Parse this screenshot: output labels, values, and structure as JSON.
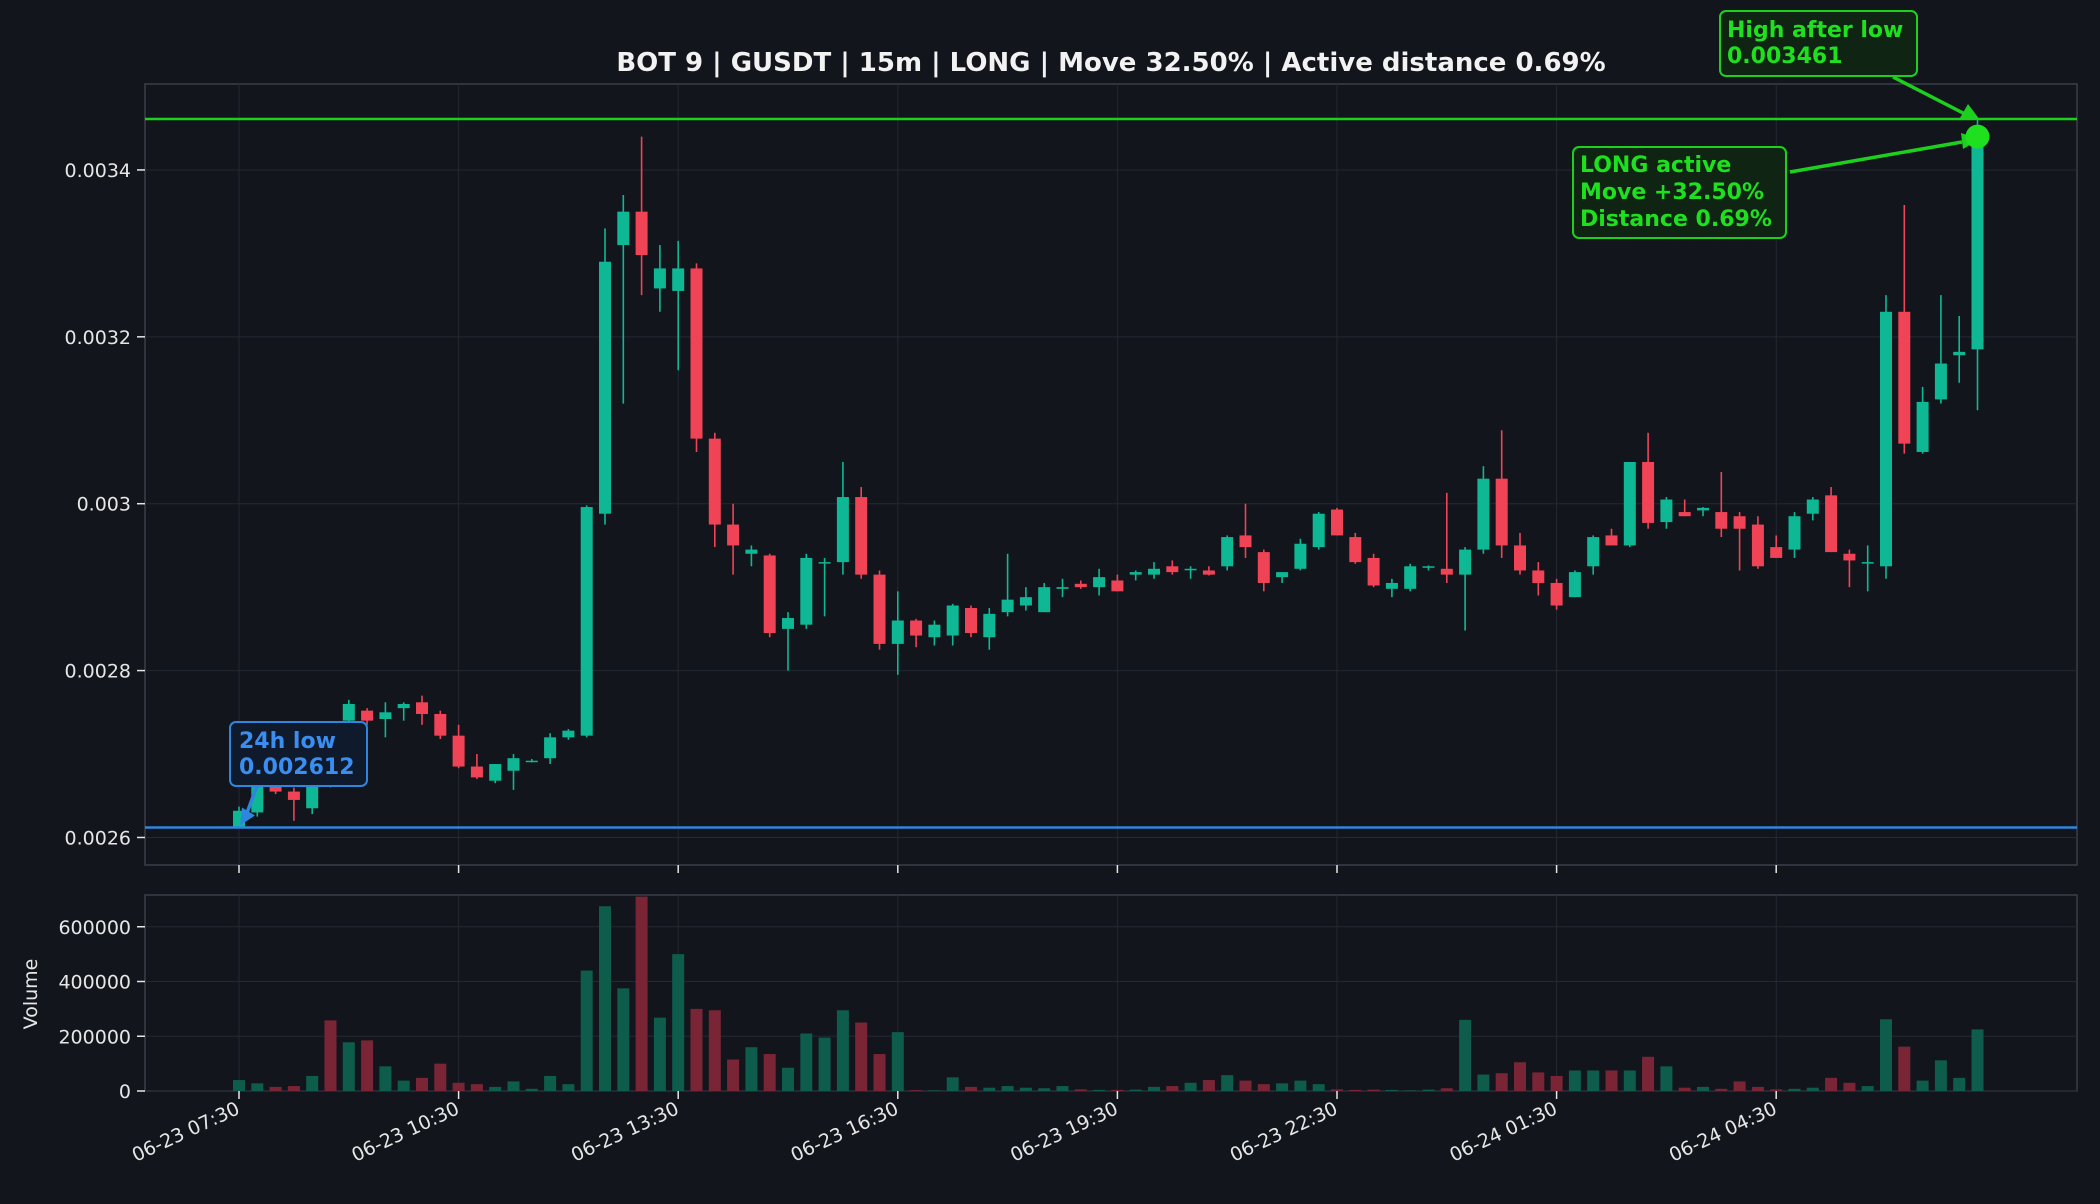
{
  "title": "BOT 9 | GUSDT | 15m | LONG | Move 32.50% | Active distance 0.69%",
  "colors": {
    "background": "#12151c",
    "up": "#0fb894",
    "down": "#f04356",
    "vol_up": "#0e5c4c",
    "vol_down": "#7a2535",
    "low_line": "#2e86de",
    "high_line": "#1ed01e",
    "annotation_green": "#1ee01e",
    "annotation_blue": "#3a8ef0",
    "axis_text": "#e6e6e6",
    "grid": "#232833",
    "frame": "#3a3f4a"
  },
  "annotations": {
    "low": {
      "line1": "24h low",
      "line2": "0.002612"
    },
    "high": {
      "line1": "High after low",
      "line2": "0.003461"
    },
    "active": {
      "line1": "LONG active",
      "line2": "Move +32.50%",
      "line3": "Distance 0.69%"
    }
  },
  "chart_data": [
    {
      "type": "candlestick",
      "title": "BOT 9 | GUSDT | 15m | LONG | Move 32.50% | Active distance 0.69%",
      "interval": "15m",
      "x_start": "06-23 07:30",
      "xtick_labels": [
        "06-23 07:30",
        "06-23 10:30",
        "06-23 13:30",
        "06-23 16:30",
        "06-23 19:30",
        "06-23 22:30",
        "06-24 01:30",
        "06-24 04:30"
      ],
      "xtick_index": [
        0,
        12,
        24,
        36,
        48,
        60,
        72,
        84
      ],
      "yticks": [
        0.0026,
        0.0028,
        0.003,
        0.0032,
        0.0034
      ],
      "ytick_labels": [
        "0.0026",
        "0.0028",
        "0.003",
        "0.0032",
        "0.0034"
      ],
      "ylim": [
        0.002567,
        0.003503
      ],
      "grid": true,
      "hlines": [
        {
          "label": "24h low",
          "value": 0.002612
        },
        {
          "label": "High after low",
          "value": 0.003461
        }
      ],
      "ohlc": [
        [
          0.002612,
          0.002637,
          0.002612,
          0.002632
        ],
        [
          0.00263,
          0.002672,
          0.002625,
          0.002665
        ],
        [
          0.002665,
          0.00268,
          0.002652,
          0.002655
        ],
        [
          0.002655,
          0.00266,
          0.00262,
          0.002645
        ],
        [
          0.002635,
          0.00269,
          0.002628,
          0.00268
        ],
        [
          0.00268,
          0.00269,
          0.00266,
          0.002662
        ],
        [
          0.00274,
          0.002765,
          0.002735,
          0.00276
        ],
        [
          0.002752,
          0.002755,
          0.002735,
          0.00274
        ],
        [
          0.002742,
          0.002762,
          0.00272,
          0.00275
        ],
        [
          0.002755,
          0.002762,
          0.00274,
          0.00276
        ],
        [
          0.002762,
          0.00277,
          0.002735,
          0.002748
        ],
        [
          0.002748,
          0.002752,
          0.002718,
          0.002722
        ],
        [
          0.002722,
          0.002735,
          0.002683,
          0.002685
        ],
        [
          0.002685,
          0.0027,
          0.00267,
          0.002672
        ],
        [
          0.002668,
          0.002688,
          0.002665,
          0.002688
        ],
        [
          0.00268,
          0.0027,
          0.002657,
          0.002695
        ],
        [
          0.002692,
          0.002694,
          0.00269,
          0.002692
        ],
        [
          0.002695,
          0.002725,
          0.002688,
          0.00272
        ],
        [
          0.00272,
          0.00273,
          0.002717,
          0.002728
        ],
        [
          0.002722,
          0.002998,
          0.00272,
          0.002996
        ],
        [
          0.002988,
          0.00333,
          0.002975,
          0.00329
        ],
        [
          0.00331,
          0.00337,
          0.00312,
          0.00335
        ],
        [
          0.00335,
          0.00344,
          0.00325,
          0.003298
        ],
        [
          0.003258,
          0.00331,
          0.00323,
          0.003282
        ],
        [
          0.003255,
          0.003315,
          0.00316,
          0.003282
        ],
        [
          0.003282,
          0.003288,
          0.003062,
          0.003078
        ],
        [
          0.003078,
          0.003085,
          0.002948,
          0.002975
        ],
        [
          0.002975,
          0.003,
          0.002915,
          0.00295
        ],
        [
          0.00294,
          0.00295,
          0.002925,
          0.002945
        ],
        [
          0.002938,
          0.00294,
          0.00284,
          0.002845
        ],
        [
          0.00285,
          0.00287,
          0.0028,
          0.002863
        ],
        [
          0.002855,
          0.00294,
          0.00285,
          0.002935
        ],
        [
          0.00293,
          0.002935,
          0.002865,
          0.00293
        ],
        [
          0.00293,
          0.00305,
          0.002915,
          0.003008
        ],
        [
          0.003008,
          0.00302,
          0.00291,
          0.002915
        ],
        [
          0.002915,
          0.00292,
          0.002825,
          0.002832
        ],
        [
          0.002832,
          0.002895,
          0.002795,
          0.00286
        ],
        [
          0.00286,
          0.002862,
          0.002828,
          0.002842
        ],
        [
          0.00284,
          0.00286,
          0.00283,
          0.002855
        ],
        [
          0.002842,
          0.00288,
          0.00283,
          0.002878
        ],
        [
          0.002875,
          0.002878,
          0.00284,
          0.002845
        ],
        [
          0.00284,
          0.002875,
          0.002825,
          0.002868
        ],
        [
          0.00287,
          0.00294,
          0.002865,
          0.002885
        ],
        [
          0.002878,
          0.0029,
          0.002872,
          0.002888
        ],
        [
          0.00287,
          0.002905,
          0.00287,
          0.0029
        ],
        [
          0.002898,
          0.00291,
          0.002888,
          0.0029
        ],
        [
          0.002904,
          0.002908,
          0.002898,
          0.0029
        ],
        [
          0.0029,
          0.002922,
          0.00289,
          0.002912
        ],
        [
          0.002908,
          0.002915,
          0.002895,
          0.002895
        ],
        [
          0.002915,
          0.00292,
          0.002908,
          0.002918
        ],
        [
          0.002915,
          0.00293,
          0.00291,
          0.002922
        ],
        [
          0.002925,
          0.002932,
          0.002915,
          0.002918
        ],
        [
          0.002922,
          0.002925,
          0.00291,
          0.002922
        ],
        [
          0.00292,
          0.002925,
          0.002914,
          0.002915
        ],
        [
          0.002925,
          0.002962,
          0.00292,
          0.00296
        ],
        [
          0.002962,
          0.003,
          0.002935,
          0.002948
        ],
        [
          0.002942,
          0.002945,
          0.002895,
          0.002905
        ],
        [
          0.002912,
          0.002918,
          0.002905,
          0.002918
        ],
        [
          0.002922,
          0.002958,
          0.00292,
          0.002952
        ],
        [
          0.002948,
          0.00299,
          0.002945,
          0.002988
        ],
        [
          0.002993,
          0.002995,
          0.002962,
          0.002962
        ],
        [
          0.00296,
          0.002965,
          0.002928,
          0.00293
        ],
        [
          0.002935,
          0.00294,
          0.0029,
          0.002902
        ],
        [
          0.002898,
          0.00291,
          0.002888,
          0.002905
        ],
        [
          0.002898,
          0.002928,
          0.002895,
          0.002925
        ],
        [
          0.002924,
          0.002926,
          0.00292,
          0.002925
        ],
        [
          0.002922,
          0.003013,
          0.002905,
          0.002915
        ],
        [
          0.002915,
          0.002948,
          0.002848,
          0.002945
        ],
        [
          0.002945,
          0.003045,
          0.00294,
          0.00303
        ],
        [
          0.00303,
          0.003088,
          0.002935,
          0.00295
        ],
        [
          0.00295,
          0.002965,
          0.002915,
          0.00292
        ],
        [
          0.00292,
          0.00293,
          0.00289,
          0.002905
        ],
        [
          0.002905,
          0.00291,
          0.002873,
          0.002878
        ],
        [
          0.002888,
          0.00292,
          0.002888,
          0.002918
        ],
        [
          0.002925,
          0.002962,
          0.002915,
          0.00296
        ],
        [
          0.002962,
          0.00297,
          0.00295,
          0.00295
        ],
        [
          0.00295,
          0.00305,
          0.002948,
          0.00305
        ],
        [
          0.00305,
          0.003085,
          0.00297,
          0.002977
        ],
        [
          0.002978,
          0.003008,
          0.00297,
          0.003005
        ],
        [
          0.00299,
          0.003005,
          0.002985,
          0.002985
        ],
        [
          0.002992,
          0.002996,
          0.002985,
          0.002995
        ],
        [
          0.00299,
          0.003038,
          0.00296,
          0.00297
        ],
        [
          0.002985,
          0.00299,
          0.00292,
          0.00297
        ],
        [
          0.002975,
          0.002985,
          0.002922,
          0.002925
        ],
        [
          0.002948,
          0.002962,
          0.002935,
          0.002935
        ],
        [
          0.002945,
          0.00299,
          0.002935,
          0.002985
        ],
        [
          0.002988,
          0.003008,
          0.00298,
          0.003005
        ],
        [
          0.00301,
          0.00302,
          0.002942,
          0.002942
        ],
        [
          0.00294,
          0.002945,
          0.0029,
          0.002932
        ],
        [
          0.00293,
          0.00295,
          0.002895,
          0.00293
        ],
        [
          0.002925,
          0.00325,
          0.00291,
          0.00323
        ],
        [
          0.00323,
          0.003358,
          0.00306,
          0.003072
        ],
        [
          0.003062,
          0.00314,
          0.00306,
          0.003122
        ],
        [
          0.003125,
          0.00325,
          0.00312,
          0.003168
        ],
        [
          0.003178,
          0.003225,
          0.003145,
          0.003182
        ],
        [
          0.003185,
          0.003461,
          0.003112,
          0.00344
        ]
      ]
    },
    {
      "type": "bar",
      "ylabel": "Volume",
      "yticks": [
        0,
        200000,
        400000,
        600000
      ],
      "ytick_labels": [
        "0",
        "200000",
        "400000",
        "600000"
      ],
      "ylim": [
        0,
        716000
      ],
      "grid": true,
      "values": [
        40000,
        28000,
        15000,
        18000,
        55000,
        258000,
        178000,
        185000,
        90000,
        38000,
        48000,
        100000,
        30000,
        25000,
        15000,
        35000,
        8000,
        55000,
        25000,
        440000,
        675000,
        375000,
        710000,
        268000,
        500000,
        300000,
        295000,
        115000,
        160000,
        135000,
        85000,
        210000,
        195000,
        295000,
        250000,
        135000,
        215000,
        3000,
        2000,
        50000,
        15000,
        12000,
        18000,
        12000,
        10000,
        18000,
        6000,
        4000,
        4000,
        5000,
        15000,
        18000,
        30000,
        40000,
        58000,
        38000,
        25000,
        28000,
        38000,
        25000,
        6000,
        4000,
        5000,
        4000,
        2000,
        5000,
        10000,
        260000,
        60000,
        65000,
        105000,
        68000,
        55000,
        75000,
        75000,
        75000,
        75000,
        125000,
        90000,
        12000,
        15000,
        8000,
        35000,
        15000,
        6000,
        8000,
        12000,
        48000,
        30000,
        18000,
        262000,
        162000,
        38000,
        112000,
        48000,
        225000
      ]
    }
  ]
}
